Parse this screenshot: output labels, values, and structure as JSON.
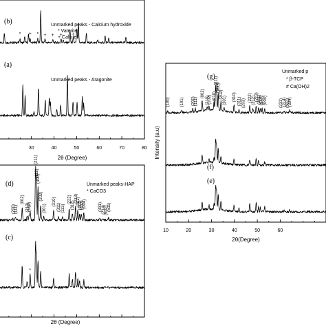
{
  "chart_data": [
    {
      "type": "line",
      "id": "top_left",
      "xlabel": "2θ (Degree)",
      "ylabel": "",
      "xlim": [
        10,
        80
      ],
      "xticks": [
        30,
        40,
        50,
        60,
        70,
        80
      ],
      "series": [
        {
          "label": "(b)",
          "offset": 62,
          "legend": [
            "Unmarked peaks - Calcium hydroxide",
            "* Vaterite",
            "+ Calcite"
          ],
          "peaks": [
            [
              18.0,
              18
            ],
            [
              24.9,
              8
            ],
            [
              27.0,
              10
            ],
            [
              28.7,
              14
            ],
            [
              29.4,
              9
            ],
            [
              32.8,
              8
            ],
            [
              34.1,
              60
            ],
            [
              36.0,
              6
            ],
            [
              39.4,
              6
            ],
            [
              43.1,
              7
            ],
            [
              44.0,
              6
            ],
            [
              47.1,
              22
            ],
            [
              48.5,
              8
            ],
            [
              50.1,
              26
            ],
            [
              50.8,
              34
            ],
            [
              54.3,
              16
            ],
            [
              59.3,
              6
            ],
            [
              62.6,
              12
            ],
            [
              64.2,
              8
            ],
            [
              71.8,
              10
            ]
          ],
          "markers": [
            {
              "x": 24.9,
              "s": "*"
            },
            {
              "x": 29.4,
              "s": "+"
            },
            {
              "x": 32.8,
              "s": "*"
            },
            {
              "x": 36.0,
              "s": "+"
            },
            {
              "x": 39.4,
              "s": "+"
            },
            {
              "x": 43.1,
              "s": "+"
            },
            {
              "x": 48.5,
              "s": "+"
            }
          ]
        },
        {
          "label": "(a)",
          "offset": 0,
          "legend": [
            "Unmarked peaks - Aragonite"
          ],
          "peaks": [
            [
              26.2,
              58
            ],
            [
              27.2,
              36
            ],
            [
              31.1,
              6
            ],
            [
              33.1,
              50
            ],
            [
              36.1,
              28
            ],
            [
              37.9,
              34
            ],
            [
              38.4,
              26
            ],
            [
              41.2,
              12
            ],
            [
              42.9,
              20
            ],
            [
              45.9,
              75
            ],
            [
              48.4,
              26
            ],
            [
              50.2,
              24
            ],
            [
              52.5,
              34
            ],
            [
              53.1,
              24
            ]
          ],
          "markers": []
        }
      ]
    },
    {
      "type": "line",
      "id": "bottom_left",
      "xlabel": "2θ (Degree)",
      "ylabel": "",
      "xlim": [
        10,
        80
      ],
      "xticks": [
        30,
        40,
        50,
        60,
        70,
        80
      ],
      "series": [
        {
          "label": "(d)",
          "offset": 65,
          "legend": [
            "Unmarked peaks-HAP",
            "* CaCO3"
          ],
          "peaks": [
            [
              10.8,
              4
            ],
            [
              21.8,
              5
            ],
            [
              22.9,
              5
            ],
            [
              25.9,
              22
            ],
            [
              28.1,
              8
            ],
            [
              28.9,
              9
            ],
            [
              29.4,
              16
            ],
            [
              31.8,
              95
            ],
            [
              32.2,
              70
            ],
            [
              32.9,
              60
            ],
            [
              34.1,
              28
            ],
            [
              35.5,
              6
            ],
            [
              39.8,
              18
            ],
            [
              42.0,
              6
            ],
            [
              43.8,
              6
            ],
            [
              46.7,
              22
            ],
            [
              48.1,
              12
            ],
            [
              49.5,
              24
            ],
            [
              50.5,
              18
            ],
            [
              51.3,
              12
            ],
            [
              52.1,
              12
            ],
            [
              53.2,
              14
            ],
            [
              60.2,
              4
            ],
            [
              61.7,
              4
            ],
            [
              64.1,
              5
            ]
          ],
          "markers": [
            {
              "x": 29.4,
              "s": "*"
            }
          ],
          "hkl": [
            [
              10.8,
              "(100)"
            ],
            [
              21.8,
              "(200)"
            ],
            [
              22.9,
              "(111)"
            ],
            [
              25.9,
              "(002)"
            ],
            [
              28.1,
              "(210)"
            ],
            [
              28.9,
              "(102)"
            ],
            [
              31.8,
              "(211)"
            ],
            [
              32.2,
              "(112)"
            ],
            [
              32.9,
              "(300)"
            ],
            [
              34.1,
              "(202)"
            ],
            [
              35.5,
              "(301)"
            ],
            [
              39.8,
              "(310)"
            ],
            [
              42.0,
              "(311)"
            ],
            [
              43.8,
              "(113)"
            ],
            [
              46.7,
              "(222)"
            ],
            [
              48.1,
              "(312)"
            ],
            [
              49.5,
              "(213)"
            ],
            [
              50.5,
              "(321)"
            ],
            [
              51.3,
              "(410)"
            ],
            [
              52.1,
              "(402)"
            ],
            [
              53.2,
              "(004)"
            ],
            [
              60.2,
              "(331)"
            ],
            [
              61.7,
              "(214)"
            ],
            [
              63.0,
              "(502)"
            ],
            [
              64.1,
              "(511)"
            ]
          ]
        },
        {
          "label": "(c)",
          "offset": 0,
          "legend": [],
          "peaks": [
            [
              25.9,
              40
            ],
            [
              28.1,
              12
            ],
            [
              29.4,
              24
            ],
            [
              31.8,
              80
            ],
            [
              32.2,
              60
            ],
            [
              32.9,
              50
            ],
            [
              34.1,
              30
            ],
            [
              39.8,
              18
            ],
            [
              46.7,
              24
            ],
            [
              48.1,
              14
            ],
            [
              49.5,
              28
            ],
            [
              50.5,
              16
            ],
            [
              51.3,
              12
            ],
            [
              53.2,
              14
            ]
          ],
          "markers": [
            {
              "x": 29.4,
              "s": "*"
            }
          ]
        }
      ]
    },
    {
      "type": "line",
      "id": "right",
      "xlabel": "2θ(Degree)",
      "ylabel": "Intensity (a.u)",
      "xlim": [
        10,
        80
      ],
      "xticks": [
        10,
        20,
        30,
        40,
        50,
        60
      ],
      "series": [
        {
          "label": "(g)",
          "offset": 132,
          "legend": [
            "Unmarked p",
            "* β-TCP",
            "# Ca(OH)2"
          ],
          "peaks": [
            [
              10.8,
              6
            ],
            [
              16.9,
              6
            ],
            [
              21.8,
              8
            ],
            [
              22.9,
              8
            ],
            [
              25.9,
              26
            ],
            [
              28.1,
              10
            ],
            [
              28.9,
              12
            ],
            [
              31.1,
              20
            ],
            [
              31.8,
              58
            ],
            [
              32.2,
              44
            ],
            [
              32.9,
              40
            ],
            [
              34.1,
              24
            ],
            [
              35.5,
              10
            ],
            [
              39.8,
              18
            ],
            [
              42.0,
              8
            ],
            [
              46.7,
              16
            ],
            [
              48.1,
              10
            ],
            [
              49.5,
              18
            ],
            [
              50.5,
              12
            ],
            [
              51.3,
              10
            ],
            [
              52.1,
              10
            ],
            [
              53.2,
              10
            ],
            [
              61.7,
              6
            ],
            [
              64.1,
              6
            ]
          ],
          "markers": [
            {
              "x": 31.1,
              "s": "*"
            }
          ],
          "hkl": [
            [
              10.8,
              "(100)"
            ],
            [
              16.9,
              "(101)"
            ],
            [
              21.8,
              "(200)"
            ],
            [
              22.9,
              "(111)"
            ],
            [
              25.9,
              "(002)"
            ],
            [
              28.1,
              "(210)"
            ],
            [
              28.9,
              "(102)"
            ],
            [
              31.1,
              "(210)"
            ],
            [
              31.8,
              "(211)"
            ],
            [
              32.2,
              "(112)"
            ],
            [
              32.9,
              "(300)"
            ],
            [
              34.1,
              "(202)"
            ],
            [
              35.5,
              "(301)"
            ],
            [
              39.8,
              "(310)"
            ],
            [
              42.0,
              "(311)"
            ],
            [
              43.8,
              "(203)"
            ],
            [
              46.7,
              "(222)"
            ],
            [
              48.1,
              "(312)"
            ],
            [
              49.5,
              "(213)"
            ],
            [
              50.5,
              "(321)"
            ],
            [
              51.3,
              "(410)"
            ],
            [
              52.1,
              "(402)"
            ],
            [
              53.2,
              "(004)"
            ],
            [
              60.2,
              "(231)"
            ],
            [
              61.7,
              "(214)"
            ],
            [
              63.0,
              "(502)"
            ],
            [
              64.1,
              "(304)"
            ]
          ]
        },
        {
          "label": "(f)",
          "offset": 68,
          "legend": [],
          "peaks": [
            [
              25.9,
              20
            ],
            [
              28.9,
              8
            ],
            [
              31.1,
              12
            ],
            [
              31.8,
              56
            ],
            [
              32.2,
              40
            ],
            [
              32.9,
              36
            ],
            [
              34.1,
              18
            ],
            [
              39.8,
              14
            ],
            [
              46.7,
              14
            ],
            [
              49.5,
              16
            ],
            [
              50.5,
              10
            ],
            [
              53.2,
              8
            ]
          ],
          "markers": []
        },
        {
          "label": "(e)",
          "offset": 0,
          "legend": [],
          "peaks": [
            [
              25.9,
              20
            ],
            [
              28.9,
              10
            ],
            [
              31.1,
              14
            ],
            [
              31.8,
              58
            ],
            [
              32.2,
              44
            ],
            [
              32.9,
              38
            ],
            [
              34.1,
              22
            ],
            [
              39.8,
              16
            ],
            [
              42.0,
              8
            ],
            [
              46.7,
              20
            ],
            [
              49.5,
              22
            ],
            [
              50.5,
              12
            ],
            [
              51.3,
              10
            ],
            [
              53.2,
              12
            ],
            [
              61.7,
              6
            ],
            [
              64.1,
              6
            ]
          ],
          "markers": []
        }
      ]
    }
  ]
}
